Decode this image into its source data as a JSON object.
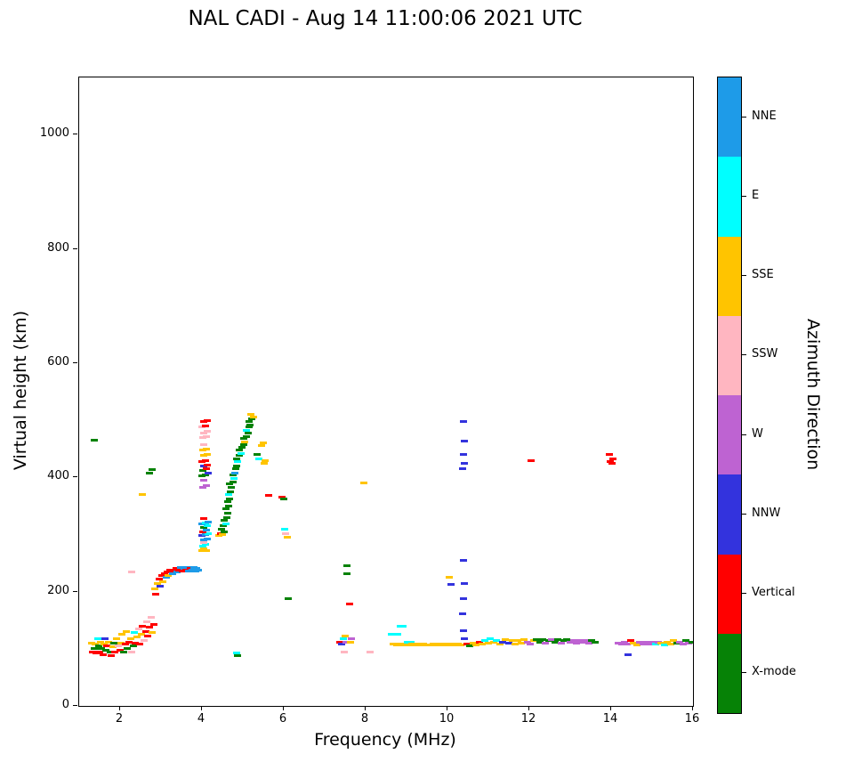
{
  "title": "NAL CADI - Aug 14 11:00:06 2021 UTC",
  "chart_data": {
    "type": "scatter",
    "title": "NAL CADI - Aug 14 11:00:06 2021 UTC",
    "xlabel": "Frequency (MHz)",
    "ylabel": "Virtual height (km)",
    "colorbar_label": "Azimuth Direction",
    "xlim": [
      1,
      16
    ],
    "ylim": [
      0,
      1100
    ],
    "x_ticks": [
      2,
      4,
      6,
      8,
      10,
      12,
      14,
      16
    ],
    "y_ticks": [
      0,
      200,
      400,
      600,
      800,
      1000
    ],
    "grid": false,
    "marker": "horizontal-dash",
    "legend": {
      "position": "right-colorbar",
      "entries": [
        {
          "label": "NNE",
          "color": "#1E9BE8"
        },
        {
          "label": "E",
          "color": "#00FFFF"
        },
        {
          "label": "SSE",
          "color": "#FFC400"
        },
        {
          "label": "SSW",
          "color": "#FFB6C1"
        },
        {
          "label": "W",
          "color": "#BE63D2"
        },
        {
          "label": "NNW",
          "color": "#3333DD"
        },
        {
          "label": "Vertical",
          "color": "#FF0000"
        },
        {
          "label": "X-mode",
          "color": "#068206"
        }
      ]
    },
    "point_format": [
      "freq_mhz",
      "height_km",
      "direction_index"
    ],
    "points": [
      [
        1.3,
        110,
        2
      ],
      [
        1.33,
        95,
        6
      ],
      [
        1.36,
        100,
        7
      ],
      [
        1.38,
        465,
        7
      ],
      [
        1.4,
        108,
        2
      ],
      [
        1.42,
        92,
        6
      ],
      [
        1.45,
        118,
        1
      ],
      [
        1.48,
        105,
        7
      ],
      [
        1.5,
        95,
        6
      ],
      [
        1.52,
        112,
        2
      ],
      [
        1.55,
        100,
        7
      ],
      [
        1.58,
        90,
        6
      ],
      [
        1.6,
        108,
        2
      ],
      [
        1.63,
        118,
        5
      ],
      [
        1.65,
        97,
        7
      ],
      [
        1.68,
        105,
        6
      ],
      [
        1.72,
        112,
        2
      ],
      [
        1.75,
        95,
        7
      ],
      [
        1.78,
        88,
        6
      ],
      [
        1.82,
        103,
        2
      ],
      [
        1.85,
        110,
        7
      ],
      [
        1.88,
        95,
        6
      ],
      [
        1.92,
        118,
        2
      ],
      [
        1.95,
        105,
        3
      ],
      [
        2.0,
        98,
        6
      ],
      [
        2.02,
        110,
        2
      ],
      [
        2.05,
        125,
        2
      ],
      [
        2.08,
        95,
        7
      ],
      [
        2.12,
        108,
        6
      ],
      [
        2.15,
        130,
        2
      ],
      [
        2.18,
        100,
        7
      ],
      [
        2.22,
        112,
        6
      ],
      [
        2.25,
        118,
        2
      ],
      [
        2.28,
        95,
        3
      ],
      [
        2.28,
        235,
        3
      ],
      [
        2.32,
        105,
        7
      ],
      [
        2.35,
        128,
        1
      ],
      [
        2.38,
        110,
        6
      ],
      [
        2.42,
        120,
        2
      ],
      [
        2.45,
        135,
        3
      ],
      [
        2.48,
        108,
        6
      ],
      [
        2.52,
        125,
        2
      ],
      [
        2.55,
        140,
        6
      ],
      [
        2.55,
        370,
        2
      ],
      [
        2.58,
        115,
        3
      ],
      [
        2.62,
        130,
        6
      ],
      [
        2.65,
        148,
        3
      ],
      [
        2.68,
        122,
        6
      ],
      [
        2.72,
        138,
        6
      ],
      [
        2.72,
        408,
        7
      ],
      [
        2.75,
        155,
        3
      ],
      [
        2.78,
        128,
        2
      ],
      [
        2.78,
        414,
        7
      ],
      [
        2.82,
        142,
        6
      ],
      [
        2.85,
        205,
        2
      ],
      [
        2.88,
        196,
        6
      ],
      [
        2.92,
        215,
        2
      ],
      [
        2.95,
        222,
        6
      ],
      [
        2.98,
        210,
        5
      ],
      [
        3.02,
        228,
        6
      ],
      [
        3.05,
        218,
        2
      ],
      [
        3.08,
        232,
        6
      ],
      [
        3.12,
        225,
        0
      ],
      [
        3.15,
        235,
        6
      ],
      [
        3.18,
        228,
        2
      ],
      [
        3.22,
        238,
        6
      ],
      [
        3.28,
        232,
        0
      ],
      [
        3.32,
        236,
        6
      ],
      [
        3.36,
        240,
        6
      ],
      [
        3.4,
        234,
        0
      ],
      [
        3.44,
        238,
        6
      ],
      [
        3.48,
        242,
        0
      ],
      [
        3.52,
        236,
        6
      ],
      [
        3.56,
        240,
        0
      ],
      [
        3.6,
        238,
        6
      ],
      [
        3.64,
        242,
        0
      ],
      [
        3.68,
        236,
        0
      ],
      [
        3.72,
        240,
        6
      ],
      [
        3.76,
        238,
        0
      ],
      [
        3.8,
        242,
        0
      ],
      [
        3.84,
        236,
        0
      ],
      [
        3.88,
        240,
        0
      ],
      [
        3.92,
        238,
        0
      ],
      [
        4.0,
        272,
        2
      ],
      [
        4.05,
        275,
        2
      ],
      [
        4.1,
        272,
        2
      ],
      [
        4.02,
        280,
        1
      ],
      [
        4.08,
        283,
        1
      ],
      [
        4.05,
        286,
        3
      ],
      [
        4.05,
        290,
        0
      ],
      [
        4.12,
        292,
        0
      ],
      [
        4.0,
        298,
        5
      ],
      [
        4.08,
        300,
        0
      ],
      [
        4.15,
        302,
        1
      ],
      [
        4.02,
        305,
        6
      ],
      [
        4.1,
        308,
        0
      ],
      [
        4.05,
        312,
        7
      ],
      [
        4.12,
        315,
        1
      ],
      [
        4.0,
        318,
        0
      ],
      [
        4.08,
        320,
        1
      ],
      [
        4.15,
        322,
        0
      ],
      [
        4.05,
        328,
        6
      ],
      [
        4.02,
        382,
        4
      ],
      [
        4.1,
        385,
        4
      ],
      [
        4.05,
        395,
        4
      ],
      [
        4.0,
        402,
        7
      ],
      [
        4.08,
        405,
        7
      ],
      [
        4.15,
        408,
        5
      ],
      [
        4.02,
        412,
        7
      ],
      [
        4.1,
        415,
        6
      ],
      [
        4.05,
        420,
        5
      ],
      [
        4.12,
        422,
        6
      ],
      [
        4.0,
        428,
        6
      ],
      [
        4.08,
        430,
        6
      ],
      [
        4.05,
        438,
        2
      ],
      [
        4.12,
        440,
        2
      ],
      [
        4.02,
        448,
        2
      ],
      [
        4.1,
        450,
        2
      ],
      [
        4.05,
        458,
        3
      ],
      [
        4.02,
        470,
        3
      ],
      [
        4.1,
        472,
        3
      ],
      [
        4.05,
        478,
        3
      ],
      [
        4.12,
        480,
        3
      ],
      [
        4.0,
        488,
        3
      ],
      [
        4.08,
        490,
        6
      ],
      [
        4.05,
        498,
        6
      ],
      [
        4.12,
        500,
        6
      ],
      [
        4.42,
        298,
        2
      ],
      [
        4.45,
        302,
        6
      ],
      [
        4.5,
        300,
        2
      ],
      [
        4.48,
        310,
        7
      ],
      [
        4.52,
        315,
        7
      ],
      [
        4.55,
        305,
        7
      ],
      [
        4.58,
        318,
        1
      ],
      [
        4.55,
        325,
        7
      ],
      [
        4.6,
        330,
        7
      ],
      [
        4.62,
        338,
        7
      ],
      [
        4.58,
        345,
        7
      ],
      [
        4.65,
        350,
        7
      ],
      [
        4.62,
        358,
        7
      ],
      [
        4.68,
        362,
        7
      ],
      [
        4.65,
        370,
        1
      ],
      [
        4.7,
        375,
        7
      ],
      [
        4.72,
        382,
        7
      ],
      [
        4.68,
        388,
        7
      ],
      [
        4.75,
        392,
        7
      ],
      [
        4.78,
        398,
        1
      ],
      [
        4.75,
        405,
        7
      ],
      [
        4.8,
        408,
        0
      ],
      [
        4.82,
        415,
        7
      ],
      [
        4.85,
        420,
        7
      ],
      [
        4.88,
        428,
        1
      ],
      [
        4.85,
        432,
        7
      ],
      [
        4.92,
        438,
        7
      ],
      [
        4.95,
        442,
        1
      ],
      [
        4.92,
        448,
        7
      ],
      [
        4.98,
        452,
        7
      ],
      [
        5.02,
        458,
        7
      ],
      [
        5.05,
        462,
        2
      ],
      [
        5.02,
        468,
        7
      ],
      [
        5.08,
        472,
        7
      ],
      [
        5.12,
        478,
        7
      ],
      [
        5.08,
        482,
        1
      ],
      [
        5.15,
        488,
        7
      ],
      [
        5.18,
        492,
        7
      ],
      [
        5.15,
        498,
        7
      ],
      [
        5.22,
        502,
        7
      ],
      [
        5.25,
        505,
        2
      ],
      [
        5.2,
        510,
        2
      ],
      [
        4.85,
        92,
        1
      ],
      [
        4.88,
        88,
        7
      ],
      [
        5.35,
        440,
        7
      ],
      [
        5.4,
        432,
        1
      ],
      [
        5.45,
        455,
        2
      ],
      [
        5.5,
        460,
        2
      ],
      [
        5.52,
        425,
        2
      ],
      [
        5.55,
        430,
        2
      ],
      [
        5.62,
        368,
        6
      ],
      [
        5.95,
        365,
        6
      ],
      [
        6.0,
        362,
        7
      ],
      [
        6.02,
        310,
        1
      ],
      [
        6.05,
        302,
        3
      ],
      [
        6.08,
        295,
        2
      ],
      [
        6.1,
        188,
        7
      ],
      [
        7.38,
        112,
        6
      ],
      [
        7.42,
        108,
        5
      ],
      [
        7.45,
        118,
        1
      ],
      [
        7.48,
        95,
        3
      ],
      [
        7.5,
        122,
        2
      ],
      [
        7.52,
        112,
        4
      ],
      [
        7.55,
        245,
        7
      ],
      [
        7.55,
        232,
        7
      ],
      [
        7.6,
        178,
        6
      ],
      [
        7.62,
        112,
        2
      ],
      [
        7.65,
        118,
        4
      ],
      [
        7.95,
        390,
        2
      ],
      [
        8.1,
        95,
        3
      ],
      [
        8.62,
        126,
        1
      ],
      [
        8.7,
        126,
        1
      ],
      [
        8.78,
        126,
        1
      ],
      [
        8.85,
        140,
        1
      ],
      [
        8.92,
        140,
        1
      ],
      [
        8.68,
        108,
        2
      ],
      [
        8.75,
        106,
        2
      ],
      [
        8.82,
        108,
        2
      ],
      [
        8.9,
        106,
        2
      ],
      [
        8.98,
        108,
        2
      ],
      [
        9.02,
        112,
        1
      ],
      [
        9.05,
        106,
        2
      ],
      [
        9.1,
        112,
        1
      ],
      [
        9.12,
        108,
        2
      ],
      [
        9.2,
        106,
        2
      ],
      [
        9.28,
        108,
        2
      ],
      [
        9.35,
        106,
        2
      ],
      [
        9.42,
        108,
        2
      ],
      [
        9.5,
        106,
        2
      ],
      [
        9.58,
        106,
        2
      ],
      [
        9.65,
        108,
        2
      ],
      [
        9.72,
        106,
        2
      ],
      [
        9.8,
        108,
        2
      ],
      [
        9.88,
        106,
        2
      ],
      [
        9.95,
        108,
        2
      ],
      [
        10.02,
        106,
        2
      ],
      [
        10.1,
        108,
        2
      ],
      [
        10.18,
        106,
        2
      ],
      [
        10.25,
        108,
        2
      ],
      [
        10.32,
        106,
        2
      ],
      [
        10.05,
        225,
        2
      ],
      [
        10.08,
        212,
        5
      ],
      [
        10.4,
        498,
        5
      ],
      [
        10.42,
        463,
        5
      ],
      [
        10.4,
        440,
        5
      ],
      [
        10.42,
        425,
        5
      ],
      [
        10.38,
        415,
        5
      ],
      [
        10.4,
        255,
        5
      ],
      [
        10.42,
        215,
        5
      ],
      [
        10.4,
        188,
        5
      ],
      [
        10.38,
        162,
        5
      ],
      [
        10.4,
        132,
        5
      ],
      [
        10.42,
        118,
        5
      ],
      [
        10.48,
        108,
        6
      ],
      [
        10.55,
        105,
        7
      ],
      [
        10.62,
        110,
        2
      ],
      [
        10.7,
        106,
        2
      ],
      [
        10.78,
        112,
        6
      ],
      [
        10.85,
        108,
        2
      ],
      [
        10.92,
        115,
        1
      ],
      [
        11.0,
        110,
        2
      ],
      [
        11.05,
        118,
        1
      ],
      [
        11.12,
        112,
        2
      ],
      [
        11.2,
        115,
        1
      ],
      [
        11.28,
        108,
        2
      ],
      [
        11.35,
        112,
        5
      ],
      [
        11.42,
        116,
        2
      ],
      [
        11.5,
        110,
        5
      ],
      [
        11.58,
        114,
        2
      ],
      [
        11.65,
        108,
        2
      ],
      [
        11.72,
        115,
        2
      ],
      [
        11.8,
        110,
        2
      ],
      [
        11.88,
        116,
        2
      ],
      [
        11.95,
        112,
        4
      ],
      [
        12.02,
        108,
        4
      ],
      [
        12.05,
        430,
        6
      ],
      [
        12.1,
        114,
        2
      ],
      [
        12.18,
        116,
        7
      ],
      [
        12.25,
        112,
        7
      ],
      [
        12.32,
        116,
        7
      ],
      [
        12.4,
        110,
        4
      ],
      [
        12.48,
        114,
        7
      ],
      [
        12.55,
        116,
        4
      ],
      [
        12.62,
        112,
        7
      ],
      [
        12.7,
        116,
        7
      ],
      [
        12.78,
        110,
        4
      ],
      [
        12.85,
        114,
        7
      ],
      [
        12.92,
        116,
        7
      ],
      [
        13.0,
        112,
        4
      ],
      [
        13.08,
        114,
        4
      ],
      [
        13.15,
        110,
        4
      ],
      [
        13.22,
        114,
        4
      ],
      [
        13.3,
        112,
        4
      ],
      [
        13.38,
        114,
        4
      ],
      [
        13.45,
        110,
        4
      ],
      [
        13.52,
        114,
        7
      ],
      [
        13.6,
        112,
        7
      ],
      [
        13.95,
        440,
        6
      ],
      [
        13.98,
        428,
        6
      ],
      [
        14.02,
        425,
        6
      ],
      [
        14.05,
        432,
        6
      ],
      [
        14.18,
        110,
        4
      ],
      [
        14.25,
        108,
        4
      ],
      [
        14.32,
        112,
        4
      ],
      [
        14.4,
        108,
        4
      ],
      [
        14.42,
        90,
        5
      ],
      [
        14.48,
        114,
        6
      ],
      [
        14.55,
        110,
        2
      ],
      [
        14.62,
        106,
        2
      ],
      [
        14.7,
        112,
        4
      ],
      [
        14.78,
        108,
        4
      ],
      [
        14.85,
        112,
        4
      ],
      [
        14.92,
        108,
        4
      ],
      [
        15.0,
        112,
        4
      ],
      [
        15.08,
        108,
        1
      ],
      [
        15.15,
        112,
        4
      ],
      [
        15.22,
        110,
        2
      ],
      [
        15.3,
        106,
        1
      ],
      [
        15.38,
        112,
        2
      ],
      [
        15.45,
        108,
        2
      ],
      [
        15.52,
        114,
        2
      ],
      [
        15.6,
        110,
        7
      ],
      [
        15.68,
        112,
        4
      ],
      [
        15.75,
        108,
        4
      ],
      [
        15.82,
        114,
        7
      ],
      [
        15.9,
        110,
        4
      ],
      [
        15.97,
        112,
        7
      ]
    ]
  }
}
